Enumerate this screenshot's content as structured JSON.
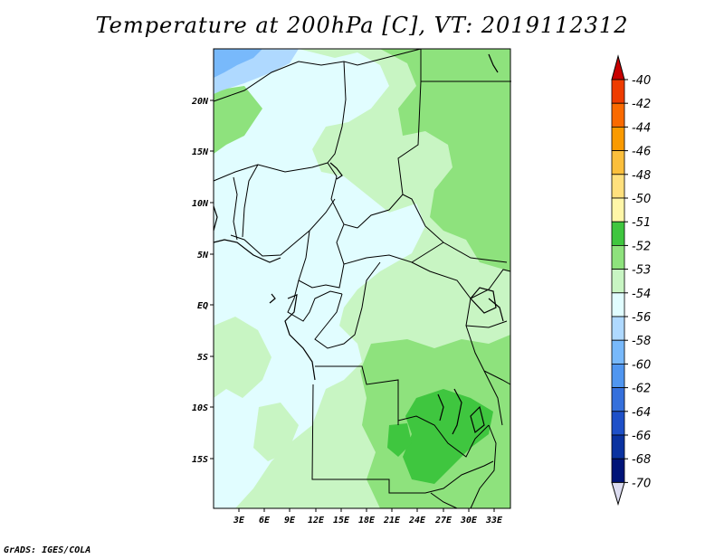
{
  "title": "Temperature at 200hPa [C], VT: 2019112312",
  "footer": "GrADS: IGES/COLA",
  "map": {
    "lat_labels": [
      "20N",
      "15N",
      "10N",
      "5N",
      "EQ",
      "5S",
      "10S",
      "15S"
    ],
    "lon_labels": [
      "3E",
      "6E",
      "9E",
      "12E",
      "15E",
      "18E",
      "21E",
      "24E",
      "27E",
      "30E",
      "33E"
    ]
  },
  "colors": {
    "c_lt52": "#c8f5c3",
    "c_52": "#8ee27d",
    "c_51": "#3fc63f",
    "c_54": "#e1fdff",
    "c_56": "#afd9ff",
    "c_58": "#78b9fb"
  },
  "legend": {
    "labels": [
      "-40",
      "-42",
      "-44",
      "-46",
      "-48",
      "-50",
      "-51",
      "-52",
      "-53",
      "-54",
      "-56",
      "-58",
      "-60",
      "-62",
      "-64",
      "-66",
      "-68",
      "-70"
    ],
    "colors": [
      "#c80000",
      "#ee3c00",
      "#fa6a00",
      "#fa9a00",
      "#fbbf3c",
      "#ffe07d",
      "#fff6a8",
      "#3fc63f",
      "#8ee27d",
      "#c8f5c3",
      "#e1fdff",
      "#afd9ff",
      "#78b9fb",
      "#5096f0",
      "#3570dc",
      "#1e50c8",
      "#0a32a0",
      "#001478",
      "#dcdcf0"
    ]
  }
}
